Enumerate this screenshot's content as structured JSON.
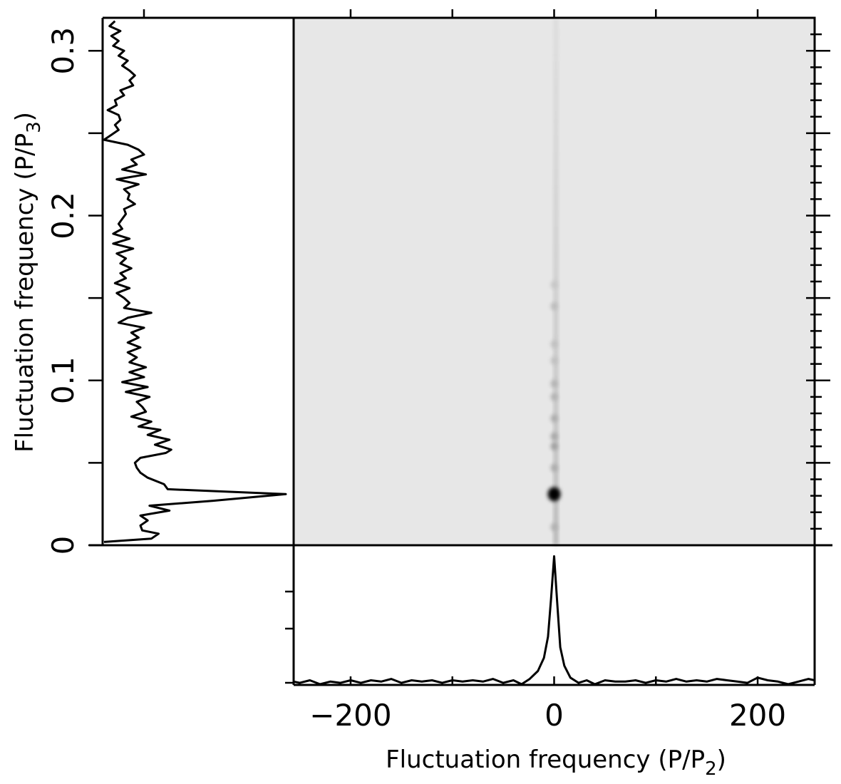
{
  "chart_data": {
    "type": "heatmap",
    "title": "",
    "xlabel": "Fluctuation frequency (P/P",
    "xlabel_sub": "2",
    "xlabel_end": ")",
    "ylabel": "Fluctuation frequency (P/P",
    "ylabel_sub": "3",
    "ylabel_end": ")",
    "xlim": [
      -256,
      256
    ],
    "ylim": [
      0,
      0.32
    ],
    "x_ticks": [
      -200,
      -100,
      0,
      100,
      200
    ],
    "x_tick_labels": [
      "−200",
      "",
      "0",
      "",
      "200"
    ],
    "y_ticks": [
      0,
      0.1,
      0.2,
      0.3
    ],
    "y_tick_labels": [
      "0",
      "0.1",
      "0.2",
      "0.3"
    ],
    "colormap": "grayscale (dark = high power)",
    "image_features": [
      {
        "x": 0,
        "y": 0.031,
        "intensity": 1.0
      },
      {
        "x": 0,
        "y": 0.047,
        "intensity": 0.28
      },
      {
        "x": 0,
        "y": 0.06,
        "intensity": 0.34
      },
      {
        "x": 0,
        "y": 0.066,
        "intensity": 0.3
      },
      {
        "x": 0,
        "y": 0.077,
        "intensity": 0.28
      },
      {
        "x": 0,
        "y": 0.09,
        "intensity": 0.25
      },
      {
        "x": 0,
        "y": 0.098,
        "intensity": 0.24
      },
      {
        "x": 0,
        "y": 0.112,
        "intensity": 0.18
      },
      {
        "x": 0,
        "y": 0.122,
        "intensity": 0.18
      },
      {
        "x": 0,
        "y": 0.145,
        "intensity": 0.2
      },
      {
        "x": 0,
        "y": 0.158,
        "intensity": 0.15
      },
      {
        "x": 0,
        "y": 0.011,
        "intensity": 0.25
      }
    ],
    "side_profile": {
      "y": [
        0.002,
        0.004,
        0.007,
        0.009,
        0.012,
        0.015,
        0.018,
        0.021,
        0.024,
        0.027,
        0.031,
        0.034,
        0.037,
        0.041,
        0.044,
        0.047,
        0.05,
        0.053,
        0.056,
        0.058,
        0.061,
        0.064,
        0.067,
        0.07,
        0.072,
        0.075,
        0.078,
        0.081,
        0.084,
        0.087,
        0.09,
        0.093,
        0.096,
        0.099,
        0.102,
        0.105,
        0.108,
        0.111,
        0.114,
        0.117,
        0.12,
        0.123,
        0.126,
        0.129,
        0.132,
        0.135,
        0.138,
        0.141,
        0.144,
        0.147,
        0.15,
        0.153,
        0.156,
        0.159,
        0.162,
        0.165,
        0.168,
        0.171,
        0.174,
        0.177,
        0.18,
        0.183,
        0.186,
        0.189,
        0.192,
        0.195,
        0.198,
        0.201,
        0.204,
        0.207,
        0.21,
        0.213,
        0.216,
        0.219,
        0.222,
        0.225,
        0.228,
        0.231,
        0.234,
        0.237,
        0.24,
        0.243,
        0.246,
        0.249,
        0.252,
        0.255,
        0.258,
        0.261,
        0.264,
        0.267,
        0.27,
        0.273,
        0.276,
        0.279,
        0.282,
        0.285,
        0.288,
        0.291,
        0.294,
        0.297,
        0.3,
        0.303,
        0.306,
        0.309,
        0.312,
        0.315,
        0.318
      ],
      "power": [
        0.0,
        0.26,
        0.3,
        0.21,
        0.2,
        0.24,
        0.2,
        0.36,
        0.25,
        0.6,
        1.0,
        0.35,
        0.33,
        0.24,
        0.2,
        0.18,
        0.17,
        0.2,
        0.34,
        0.37,
        0.28,
        0.36,
        0.24,
        0.31,
        0.19,
        0.26,
        0.15,
        0.23,
        0.21,
        0.18,
        0.25,
        0.12,
        0.24,
        0.1,
        0.22,
        0.14,
        0.23,
        0.14,
        0.18,
        0.13,
        0.2,
        0.13,
        0.19,
        0.15,
        0.22,
        0.08,
        0.13,
        0.26,
        0.11,
        0.14,
        0.11,
        0.07,
        0.14,
        0.06,
        0.12,
        0.09,
        0.15,
        0.09,
        0.12,
        0.07,
        0.16,
        0.05,
        0.14,
        0.05,
        0.1,
        0.08,
        0.1,
        0.12,
        0.11,
        0.17,
        0.13,
        0.14,
        0.11,
        0.19,
        0.07,
        0.23,
        0.1,
        0.18,
        0.15,
        0.22,
        0.19,
        0.13,
        0.0,
        0.04,
        0.08,
        0.06,
        0.09,
        0.08,
        0.02,
        0.07,
        0.06,
        0.11,
        0.09,
        0.16,
        0.14,
        0.17,
        0.14,
        0.1,
        0.13,
        0.08,
        0.11,
        0.05,
        0.08,
        0.04,
        0.09,
        0.03,
        0.06
      ]
    },
    "bottom_profile": {
      "x": [
        -256,
        -250,
        -240,
        -230,
        -220,
        -210,
        -200,
        -190,
        -180,
        -170,
        -160,
        -150,
        -140,
        -130,
        -120,
        -110,
        -100,
        -90,
        -80,
        -70,
        -60,
        -50,
        -40,
        -32,
        -24,
        -16,
        -10,
        -6,
        -3,
        0,
        3,
        6,
        10,
        16,
        24,
        32,
        40,
        50,
        60,
        70,
        80,
        90,
        100,
        110,
        120,
        130,
        140,
        150,
        160,
        170,
        180,
        190,
        200,
        210,
        220,
        230,
        240,
        250,
        256
      ],
      "power": [
        0.02,
        0.01,
        0.03,
        0.0,
        0.02,
        0.01,
        0.03,
        0.01,
        0.03,
        0.02,
        0.04,
        0.01,
        0.03,
        0.02,
        0.03,
        0.01,
        0.03,
        0.02,
        0.03,
        0.02,
        0.04,
        0.01,
        0.03,
        0.0,
        0.04,
        0.1,
        0.2,
        0.36,
        0.65,
        0.97,
        0.62,
        0.28,
        0.14,
        0.05,
        0.01,
        0.03,
        0.0,
        0.03,
        0.02,
        0.02,
        0.03,
        0.01,
        0.03,
        0.02,
        0.04,
        0.02,
        0.03,
        0.02,
        0.04,
        0.03,
        0.02,
        0.01,
        0.05,
        0.03,
        0.02,
        0.0,
        0.02,
        0.04,
        0.03
      ]
    }
  }
}
